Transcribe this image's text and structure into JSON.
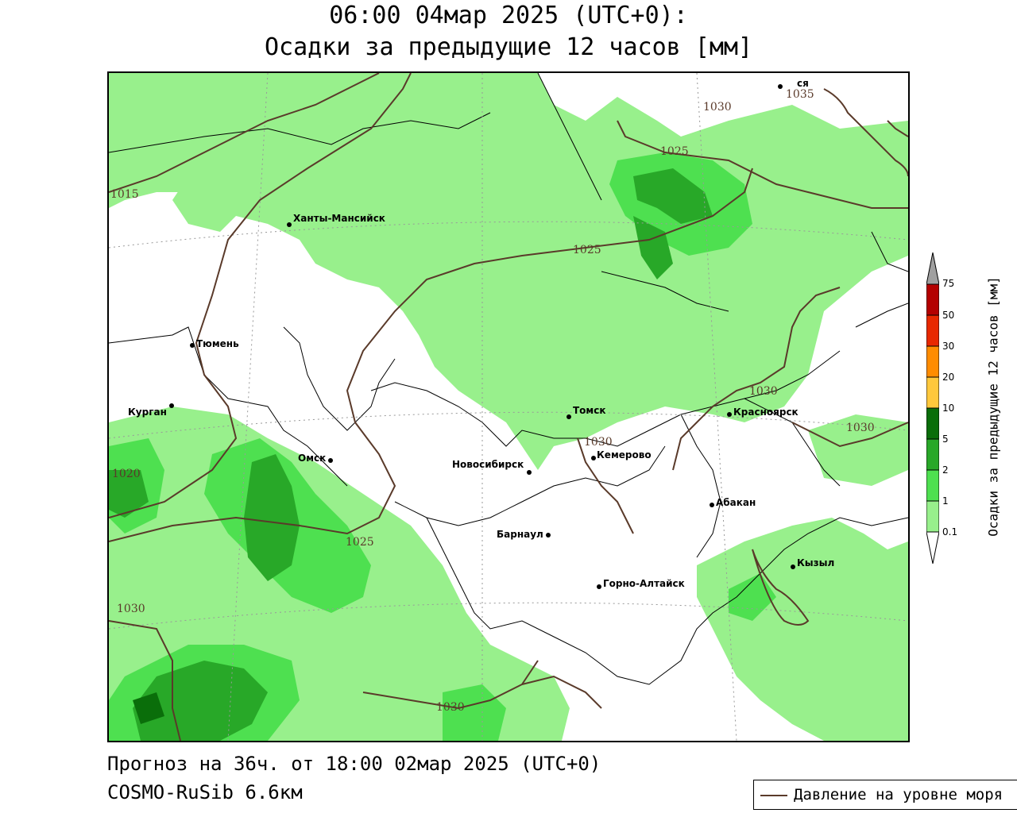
{
  "header": {
    "title_line1": "06:00 04мар 2025 (UTC+0):",
    "title_line2": "Осадки за предыдущие 12 часов [мм]"
  },
  "footer": {
    "forecast": "Прогноз на 36ч. от 18:00 02мар 2025 (UTC+0)",
    "model": "COSMO-RuSib 6.6км"
  },
  "legend": {
    "pressure_label": "Давление на уровне моря",
    "pressure_color": "#5a3a2a"
  },
  "colorbar": {
    "label": "Осадки за предыдущие 12 часов [мм]",
    "ticks": [
      "0.1",
      "1",
      "2",
      "5",
      "10",
      "20",
      "30",
      "50",
      "75"
    ],
    "colors": [
      "#ffffff",
      "#98f08c",
      "#4ee050",
      "#28a828",
      "#0a6e0a",
      "#ffc83c",
      "#ff8c00",
      "#e82800",
      "#b40000",
      "#a0a0a0"
    ]
  },
  "cities": [
    {
      "name": "Ханты-Мансийск"
    },
    {
      "name": "Тюмень"
    },
    {
      "name": "Курган"
    },
    {
      "name": "Омск"
    },
    {
      "name": "Новосибирск"
    },
    {
      "name": "Томск"
    },
    {
      "name": "Кемерово"
    },
    {
      "name": "Красноярск"
    },
    {
      "name": "Абакан"
    },
    {
      "name": "Барнаул"
    },
    {
      "name": "Горно-Алтайск"
    },
    {
      "name": "Кызыл"
    },
    {
      "name": "ся"
    }
  ],
  "isobar_labels": [
    "1015",
    "1020",
    "1025",
    "1025",
    "1025",
    "1030",
    "1030",
    "1030",
    "1030",
    "1030",
    "1030",
    "1035"
  ]
}
